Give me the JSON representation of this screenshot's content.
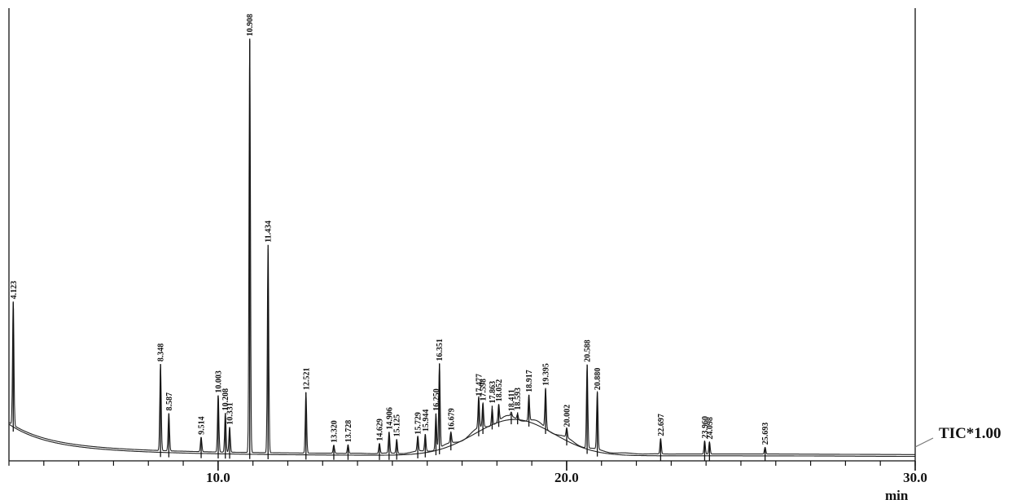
{
  "chart_data": {
    "type": "line",
    "title": "",
    "xlabel": "min",
    "ylabel": "",
    "series_label": "TIC*1.00",
    "xlim": [
      4.0,
      30.0
    ],
    "ylim": [
      0,
      100
    ],
    "x_ticks": [
      {
        "value": 10.0,
        "label": "10.0"
      },
      {
        "value": 20.0,
        "label": "20.0"
      },
      {
        "value": 30.0,
        "label": "30.0"
      }
    ],
    "minor_tick_step": 1.0,
    "peaks": [
      {
        "rt": 4.123,
        "label": "4.123",
        "height": 27.3
      },
      {
        "rt": 8.348,
        "label": "8.348",
        "height": 19.1
      },
      {
        "rt": 8.587,
        "label": "8.587",
        "height": 8.3
      },
      {
        "rt": 9.514,
        "label": "9.514",
        "height": 3.2
      },
      {
        "rt": 10.003,
        "label": "10.003",
        "height": 12.5
      },
      {
        "rt": 10.208,
        "label": "10.208",
        "height": 8.6
      },
      {
        "rt": 10.331,
        "label": "10.331",
        "height": 5.5
      },
      {
        "rt": 10.908,
        "label": "10.908",
        "height": 91.4
      },
      {
        "rt": 11.434,
        "label": "11.434",
        "height": 45.9
      },
      {
        "rt": 12.521,
        "label": "12.521",
        "height": 13.4
      },
      {
        "rt": 13.32,
        "label": "13.320",
        "height": 1.8
      },
      {
        "rt": 13.728,
        "label": "13.728",
        "height": 1.9
      },
      {
        "rt": 14.629,
        "label": "14.629",
        "height": 2.2
      },
      {
        "rt": 14.906,
        "label": "14.906",
        "height": 4.7
      },
      {
        "rt": 15.125,
        "label": "15.125",
        "height": 3.1
      },
      {
        "rt": 15.729,
        "label": "15.729",
        "height": 3.3
      },
      {
        "rt": 15.944,
        "label": "15.944",
        "height": 3.7
      },
      {
        "rt": 16.25,
        "label": "16.250",
        "height": 7.8
      },
      {
        "rt": 16.351,
        "label": "16.351",
        "height": 18.6
      },
      {
        "rt": 16.679,
        "label": "16.679",
        "height": 2.4
      },
      {
        "rt": 17.477,
        "label": "17.477",
        "height": 6.9
      },
      {
        "rt": 17.598,
        "label": "17.598",
        "height": 5.3
      },
      {
        "rt": 17.863,
        "label": "17.863",
        "height": 3.8
      },
      {
        "rt": 18.052,
        "label": "18.052",
        "height": 3.6
      },
      {
        "rt": 18.411,
        "label": "18.411",
        "height": 0.9
      },
      {
        "rt": 18.593,
        "label": "18.593",
        "height": 1.2
      },
      {
        "rt": 18.917,
        "label": "18.917",
        "height": 5.6
      },
      {
        "rt": 19.395,
        "label": "19.395",
        "height": 8.7
      },
      {
        "rt": 20.002,
        "label": "20.002",
        "height": 2.1
      },
      {
        "rt": 20.588,
        "label": "20.588",
        "height": 18.3
      },
      {
        "rt": 20.88,
        "label": "20.880",
        "height": 12.7
      },
      {
        "rt": 22.697,
        "label": "22.697",
        "height": 3.4
      },
      {
        "rt": 23.96,
        "label": "23.960",
        "height": 2.9
      },
      {
        "rt": 24.098,
        "label": "24.098",
        "height": 2.7
      },
      {
        "rt": 25.693,
        "label": "25.693",
        "height": 1.5
      }
    ]
  }
}
